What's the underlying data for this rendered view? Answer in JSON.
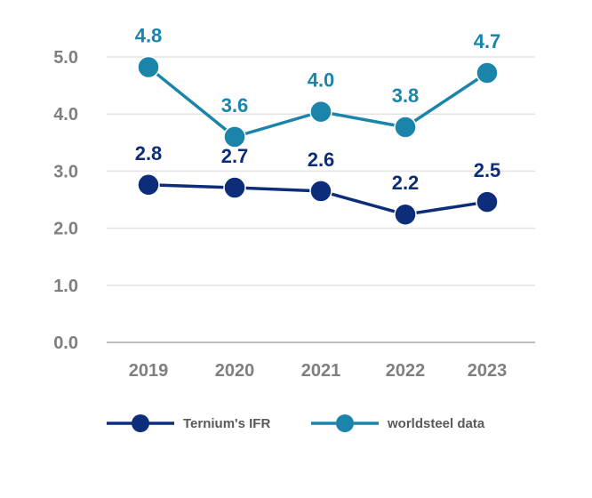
{
  "chart_data": {
    "type": "line",
    "x": [
      "2019",
      "2020",
      "2021",
      "2022",
      "2023"
    ],
    "ylim": [
      0,
      5
    ],
    "y_ticks": [
      "0.0",
      "1.0",
      "2.0",
      "3.0",
      "4.0",
      "5.0"
    ],
    "grid": true,
    "legend_position": "bottom",
    "series": [
      {
        "name": "Ternium's IFR",
        "values": [
          2.76,
          2.71,
          2.65,
          2.24,
          2.46
        ],
        "labels": [
          "2.8",
          "2.7",
          "2.6",
          "2.2",
          "2.5"
        ],
        "color": "#0d2d7a"
      },
      {
        "name": "worldsteel data",
        "values": [
          4.82,
          3.6,
          4.04,
          3.77,
          4.72
        ],
        "labels": [
          "4.8",
          "3.6",
          "4.0",
          "3.8",
          "4.7"
        ],
        "color": "#1a84ab"
      }
    ]
  }
}
